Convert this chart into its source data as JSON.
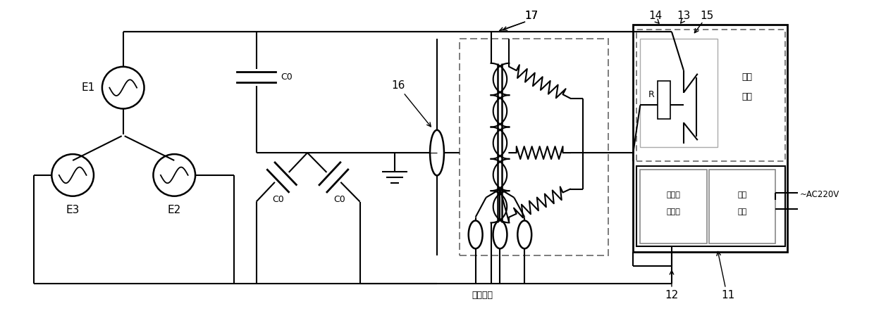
{
  "bg_color": "#ffffff",
  "line_color": "#000000",
  "lw": 1.5,
  "fig_w": 12.4,
  "fig_h": 4.59,
  "xlim": [
    0,
    12.4
  ],
  "ylim": [
    0,
    4.59
  ]
}
